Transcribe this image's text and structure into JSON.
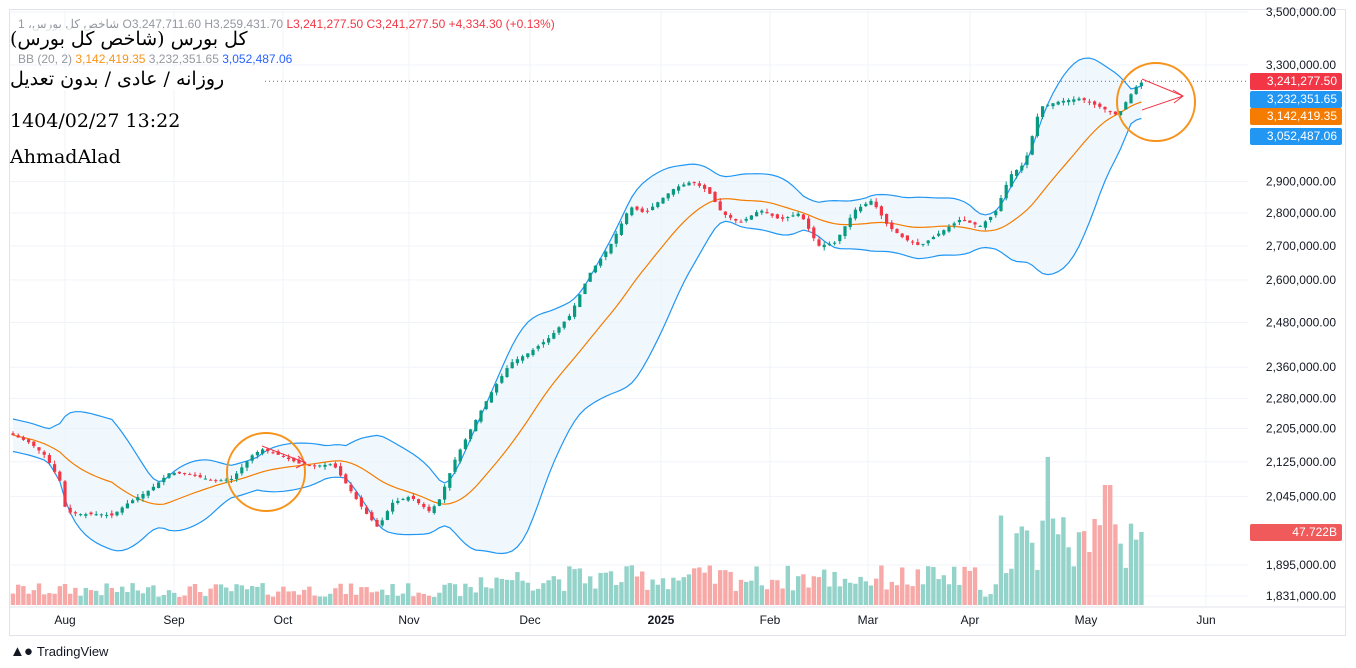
{
  "header": {
    "symbol_line": "1 ،شاخص کل بورس",
    "ohlc": {
      "o": "O3,247,711.60",
      "h": "H3,259,431.70",
      "l": "L3,241,277.50",
      "c": "C3,241,277.50",
      "chg": "+4,334.30 (+0.13%)"
    },
    "bb_label": "BB (20, 2)",
    "bb_values": [
      "3,142,419.35",
      "3,232,351.65",
      "3,052,487.06"
    ]
  },
  "info": {
    "title": "کل بورس (شاخص کل بورس)",
    "subtitle": "روزانه / عادی / بدون تعدیل",
    "datetime": "1404/02/27 13:22",
    "author": "AhmadAlad"
  },
  "brand": {
    "name": "TradingView",
    "icon": "tradingview-logo-icon"
  },
  "colors": {
    "up": "#089981",
    "down": "#f23645",
    "vol_up": "#94d3c9",
    "vol_down": "#f7a9a7",
    "bb_upper": "#2196f3",
    "bb_basis": "#f57c00",
    "bb_fill": "#e3f2fd",
    "annotation": "#f5a623",
    "arrow": "#f23645"
  },
  "chart_data": {
    "type": "candlestick",
    "y_scale": "log",
    "y_ticks": [
      "3,500,000.00",
      "3,300,000.00",
      "2,900,000.00",
      "2,800,000.00",
      "2,700,000.00",
      "2,600,000.00",
      "2,480,000.00",
      "2,360,000.00",
      "2,280,000.00",
      "2,205,000.00",
      "2,125,000.00",
      "2,045,000.00",
      "1,895,000.00",
      "1,831,000.00"
    ],
    "y_tick_values": [
      3500000,
      3300000,
      2900000,
      2800000,
      2700000,
      2600000,
      2480000,
      2360000,
      2280000,
      2205000,
      2125000,
      2045000,
      1895000,
      1831000
    ],
    "x_ticks": [
      {
        "label": "Aug",
        "bold": false
      },
      {
        "label": "Sep",
        "bold": false
      },
      {
        "label": "Oct",
        "bold": false
      },
      {
        "label": "Nov",
        "bold": false
      },
      {
        "label": "Dec",
        "bold": false
      },
      {
        "label": "2025",
        "bold": true
      },
      {
        "label": "Feb",
        "bold": false
      },
      {
        "label": "Mar",
        "bold": false
      },
      {
        "label": "Apr",
        "bold": false
      },
      {
        "label": "May",
        "bold": false
      },
      {
        "label": "Jun",
        "bold": false
      }
    ],
    "price_labels": [
      {
        "text": "3,241,277.50",
        "color": "#f23645",
        "value": 3241277.5
      },
      {
        "text": "3,232,351.65",
        "color": "#2196f3",
        "value": 3232351.65
      },
      {
        "text": "3,142,419.35",
        "color": "#f57c00",
        "value": 3142419.35
      },
      {
        "text": "3,052,487.06",
        "color": "#2196f3",
        "value": 3052487.06
      }
    ],
    "volume_label": "47.722B",
    "last_close": 3241277.5,
    "key_points": {
      "start_aug": 2190000,
      "low_aug": 2010000,
      "peak_oct": 2165000,
      "low_nov": 1975000,
      "high_jan": 2930000,
      "low_feb": 2680000,
      "high_may": 3250000,
      "last": 3241277.5
    }
  }
}
